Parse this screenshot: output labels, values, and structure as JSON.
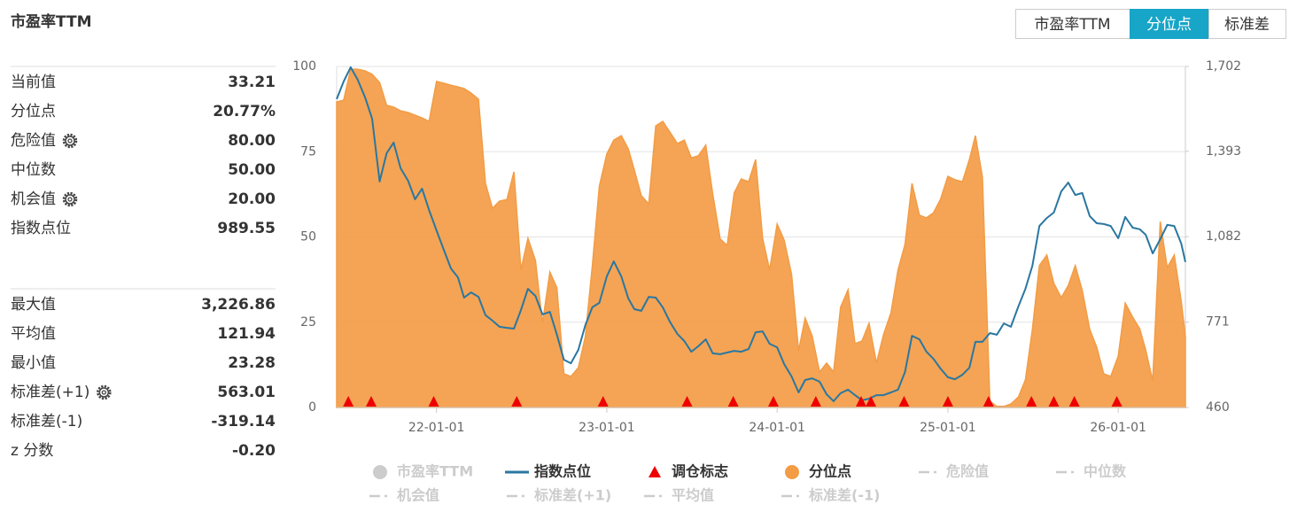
{
  "title": "市盈率TTM",
  "buttons": [
    "市盈率TTM",
    "分位点",
    "标准差"
  ],
  "active_button": 1,
  "stats": [
    [
      {
        "label": "当前值",
        "value": "33.21"
      },
      {
        "label": "分位点",
        "value": "20.77%"
      },
      {
        "label": "危险值",
        "value": "80.00",
        "settings": true
      },
      {
        "label": "中位数",
        "value": "50.00"
      },
      {
        "label": "机会值",
        "value": "20.00",
        "settings": true
      },
      {
        "label": "指数点位",
        "value": "989.55"
      }
    ],
    [
      {
        "label": "最大值",
        "value": "3,226.86"
      },
      {
        "label": "平均值",
        "value": "121.94"
      },
      {
        "label": "最小值",
        "value": "23.28"
      },
      {
        "label": "标准差(+1)",
        "value": "563.01",
        "settings": true
      },
      {
        "label": "标准差(-1)",
        "value": "-319.14"
      },
      {
        "label": "z 分数",
        "value": "-0.20"
      }
    ]
  ],
  "chart_data": {
    "type": "area",
    "x": [
      "21-06-01",
      "21-06-16",
      "21-07-01",
      "21-07-16",
      "21-08-01",
      "21-08-16",
      "21-09-01",
      "21-09-16",
      "21-10-01",
      "21-10-16",
      "21-11-01",
      "21-11-16",
      "21-12-01",
      "21-12-16",
      "22-01-01",
      "22-01-16",
      "22-02-01",
      "22-02-16",
      "22-03-01",
      "22-03-16",
      "22-04-01",
      "22-04-16",
      "22-05-01",
      "22-05-16",
      "22-06-01",
      "22-06-16",
      "22-07-01",
      "22-07-16",
      "22-08-01",
      "22-08-16",
      "22-09-01",
      "22-09-16",
      "22-10-01",
      "22-10-16",
      "22-11-01",
      "22-11-16",
      "22-12-01",
      "22-12-16",
      "23-01-01",
      "23-01-16",
      "23-02-01",
      "23-02-16",
      "23-03-01",
      "23-03-16",
      "23-04-01",
      "23-04-16",
      "23-05-01",
      "23-05-16",
      "23-06-01",
      "23-06-16",
      "23-07-01",
      "23-07-16",
      "23-08-01",
      "23-08-16",
      "23-09-01",
      "23-09-16",
      "23-10-01",
      "23-10-16",
      "23-11-01",
      "23-11-16",
      "23-12-01",
      "23-12-16",
      "24-01-01",
      "24-01-16",
      "24-02-01",
      "24-02-16",
      "24-03-01",
      "24-03-16",
      "24-04-01",
      "24-04-16",
      "24-05-01",
      "24-05-16",
      "24-06-01",
      "24-06-16",
      "24-07-01",
      "24-07-16",
      "24-08-01",
      "24-08-16",
      "24-09-01",
      "24-09-16",
      "24-10-01",
      "24-10-16",
      "24-11-01",
      "24-11-16",
      "24-12-01",
      "24-12-16",
      "25-01-01",
      "25-01-16",
      "25-02-01",
      "25-02-16",
      "25-03-01",
      "25-03-16",
      "25-04-01",
      "25-04-16",
      "25-05-01",
      "25-05-16",
      "25-06-01",
      "25-06-16",
      "25-07-01",
      "25-07-16",
      "25-08-01",
      "25-08-16",
      "25-09-01",
      "25-09-16",
      "25-10-01",
      "25-10-16",
      "25-11-01",
      "25-11-16",
      "25-12-01",
      "25-12-16",
      "26-01-01",
      "26-01-16",
      "26-02-01",
      "26-02-16",
      "26-03-01",
      "26-03-16",
      "26-04-01",
      "26-04-16",
      "26-05-01",
      "26-05-16",
      "26-05-25"
    ],
    "xlim": [
      "21-06-01",
      "26-05-25"
    ],
    "xticks": [
      "22-01-01",
      "23-01-01",
      "24-01-01",
      "25-01-01",
      "26-01-01"
    ],
    "ylim": [
      0,
      100
    ],
    "yticks": [
      0,
      25,
      50,
      75,
      100
    ],
    "y2lim": [
      460,
      1702
    ],
    "y2ticks": [
      460,
      771,
      {
        "value": 1082,
        "label": "1,082"
      },
      {
        "value": 1393,
        "label": "1,393"
      },
      {
        "value": 1702,
        "label": "1,702"
      }
    ],
    "grid": true,
    "legend": "bottom",
    "series": [
      {
        "name": "市盈率TTM",
        "kind": "point",
        "color": "#cccccc",
        "visible": false
      },
      {
        "name": "指数点位",
        "kind": "line",
        "axis": "y2",
        "color": "#2a77a1",
        "visible": true,
        "values": [
          1583,
          1647,
          1699,
          1654,
          1589,
          1512,
          1283,
          1386,
          1425,
          1331,
          1286,
          1218,
          1257,
          1179,
          1105,
          1037,
          966,
          934,
          860,
          879,
          863,
          796,
          776,
          754,
          750,
          747,
          815,
          892,
          866,
          799,
          808,
          725,
          634,
          621,
          670,
          760,
          825,
          841,
          937,
          992,
          937,
          857,
          818,
          812,
          863,
          860,
          825,
          773,
          728,
          702,
          663,
          683,
          708,
          657,
          654,
          660,
          666,
          663,
          673,
          734,
          737,
          692,
          679,
          618,
          573,
          515,
          560,
          566,
          554,
          508,
          483,
          512,
          525,
          505,
          486,
          492,
          505,
          505,
          515,
          525,
          589,
          721,
          708,
          663,
          637,
          602,
          570,
          563,
          579,
          605,
          699,
          699,
          731,
          725,
          766,
          754,
          828,
          892,
          976,
          1121,
          1150,
          1170,
          1247,
          1279,
          1234,
          1241,
          1157,
          1131,
          1128,
          1121,
          1076,
          1154,
          1115,
          1109,
          1089,
          1021,
          1073,
          1125,
          1121,
          1057,
          989.55
        ]
      },
      {
        "name": "调仓标志",
        "kind": "triangle",
        "color": "#ee0000",
        "visible": true,
        "x": [
          "21-06-26",
          "21-08-14",
          "21-12-26",
          "22-06-22",
          "22-12-24",
          "23-06-22",
          "23-09-29",
          "23-12-24",
          "24-03-24",
          "24-06-29",
          "24-07-20",
          "24-09-29",
          "25-01-01",
          "25-03-29",
          "25-06-29",
          "25-08-16",
          "25-09-29",
          "25-12-29"
        ]
      },
      {
        "name": "分位点",
        "kind": "area",
        "color": "#f39c45",
        "visible": true,
        "values": [
          89.6,
          90.1,
          99.2,
          99.2,
          98.7,
          97.7,
          95.3,
          88.6,
          88.1,
          87.0,
          86.5,
          85.7,
          84.9,
          83.9,
          95.6,
          95.1,
          94.5,
          94.0,
          93.5,
          92.2,
          90.4,
          65.7,
          58.4,
          60.5,
          61.0,
          69.1,
          40.3,
          49.6,
          43.1,
          24.7,
          39.7,
          35.1,
          9.9,
          9.1,
          11.7,
          20.8,
          41.6,
          64.9,
          74.3,
          78.4,
          79.7,
          75.8,
          69.6,
          62.1,
          59.7,
          82.6,
          83.9,
          80.8,
          77.4,
          78.4,
          73.2,
          73.8,
          76.9,
          62.6,
          49.4,
          47.5,
          62.9,
          67.0,
          66.2,
          72.7,
          49.6,
          40.3,
          53.8,
          49.1,
          39.0,
          16.6,
          26.2,
          21.0,
          10.4,
          13.0,
          10.4,
          29.4,
          34.5,
          18.7,
          19.5,
          24.7,
          13.0,
          21.3,
          27.8,
          40.3,
          47.8,
          65.7,
          56.4,
          55.6,
          57.1,
          61.0,
          67.8,
          66.8,
          66.2,
          72.7,
          79.7,
          67.5,
          1.8,
          0.3,
          0.3,
          1.0,
          3.1,
          8.1,
          22.9,
          41.6,
          44.7,
          36.4,
          32.2,
          35.8,
          41.6,
          34.3,
          22.9,
          17.7,
          9.9,
          9.1,
          15.1,
          30.6,
          26.5,
          23.1,
          16.9,
          7.8,
          54.5,
          41.0,
          44.7,
          31.2,
          20.77
        ]
      },
      {
        "name": "危险值",
        "kind": "dash",
        "color": "#cccccc",
        "visible": false
      },
      {
        "name": "中位数",
        "kind": "dash",
        "color": "#cccccc",
        "visible": false
      },
      {
        "name": "机会值",
        "kind": "dash",
        "color": "#cccccc",
        "visible": false
      },
      {
        "name": "标准差(+1)",
        "kind": "dash",
        "color": "#cccccc",
        "visible": false
      },
      {
        "name": "平均值",
        "kind": "dash",
        "color": "#cccccc",
        "visible": false
      },
      {
        "name": "标准差(-1)",
        "kind": "dash",
        "color": "#cccccc",
        "visible": false
      }
    ]
  }
}
